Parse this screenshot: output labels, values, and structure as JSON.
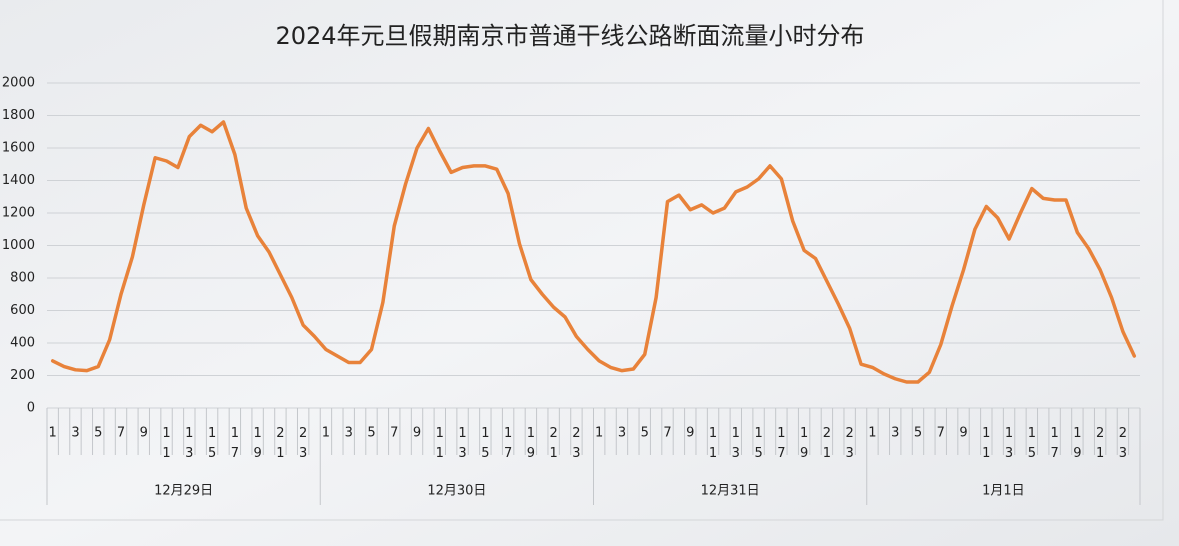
{
  "chart_data": {
    "type": "line",
    "title": "2024年元旦假期南京市普通干线公路断面流量小时分布",
    "categories": [
      "1",
      null,
      "3",
      null,
      "5",
      null,
      "7",
      null,
      "9",
      null,
      "11",
      null,
      "13",
      null,
      "15",
      null,
      "17",
      null,
      "19",
      null,
      "21",
      null,
      "23",
      null,
      "1",
      null,
      "3",
      null,
      "5",
      null,
      "7",
      null,
      "9",
      null,
      "11",
      null,
      "13",
      null,
      "15",
      null,
      "17",
      null,
      "19",
      null,
      "21",
      null,
      "23",
      null,
      "1",
      null,
      "3",
      null,
      "5",
      null,
      "7",
      null,
      "9",
      null,
      "11",
      null,
      "13",
      null,
      "15",
      null,
      "17",
      null,
      "19",
      null,
      "21",
      null,
      "23",
      null,
      "1",
      null,
      "3",
      null,
      "5",
      null,
      "7",
      null,
      "9",
      null,
      "11",
      null,
      "13",
      null,
      "15",
      null,
      "17",
      null,
      "19",
      null,
      "21",
      null,
      "23",
      null
    ],
    "groups": [
      "12月29日",
      "12月30日",
      "12月31日",
      "1月1日"
    ],
    "values": [
      290,
      255,
      235,
      230,
      255,
      420,
      700,
      930,
      1250,
      1540,
      1520,
      1480,
      1670,
      1740,
      1700,
      1760,
      1560,
      1230,
      1060,
      960,
      820,
      680,
      510,
      440,
      360,
      320,
      280,
      280,
      360,
      650,
      1120,
      1380,
      1600,
      1720,
      1580,
      1450,
      1480,
      1490,
      1490,
      1470,
      1320,
      1010,
      790,
      700,
      620,
      560,
      440,
      360,
      290,
      250,
      230,
      240,
      330,
      680,
      1270,
      1310,
      1220,
      1250,
      1200,
      1230,
      1330,
      1360,
      1410,
      1490,
      1410,
      1150,
      970,
      920,
      780,
      640,
      490,
      270,
      250,
      210,
      180,
      160,
      160,
      220,
      390,
      630,
      850,
      1100,
      1240,
      1170,
      1040,
      1200,
      1350,
      1290,
      1280,
      1280,
      1080,
      980,
      850,
      680,
      470,
      320
    ],
    "color": "#e8823a",
    "ylim": [
      0,
      2000
    ],
    "yticks": [
      0,
      200,
      400,
      600,
      800,
      1000,
      1200,
      1400,
      1600,
      1800,
      2000
    ],
    "grid": true
  }
}
